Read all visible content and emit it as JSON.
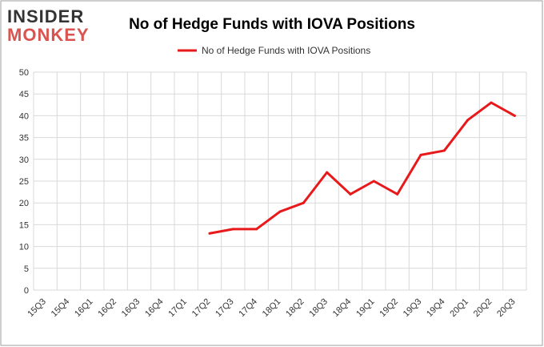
{
  "logo": {
    "line1": "INSIDER",
    "line2": "MONKEY",
    "color_dark": "#333333",
    "color_accent": "#d9534f"
  },
  "chart_data": {
    "type": "line",
    "title": "No of Hedge Funds with IOVA Positions",
    "legend": {
      "label": "No of Hedge Funds with IOVA Positions",
      "placement": "top-center"
    },
    "x": [
      "15Q3",
      "15Q4",
      "16Q1",
      "16Q2",
      "16Q3",
      "16Q4",
      "17Q1",
      "17Q2",
      "17Q3",
      "17Q4",
      "18Q1",
      "18Q2",
      "18Q3",
      "18Q4",
      "19Q1",
      "19Q2",
      "19Q3",
      "19Q4",
      "20Q1",
      "20Q2",
      "20Q3"
    ],
    "series": [
      {
        "name": "No of Hedge Funds with IOVA Positions",
        "color": "#e8191a",
        "values": [
          null,
          null,
          null,
          null,
          null,
          null,
          null,
          13,
          14,
          14,
          18,
          20,
          27,
          22,
          25,
          22,
          31,
          32,
          39,
          43,
          40
        ]
      }
    ],
    "ylim": [
      0,
      50
    ],
    "yticks": [
      0,
      5,
      10,
      15,
      20,
      25,
      30,
      35,
      40,
      45,
      50
    ],
    "xlabel": "",
    "ylabel": "",
    "grid": true,
    "grid_color": "#d9d9d9",
    "border_color": "#9e9e9e"
  }
}
